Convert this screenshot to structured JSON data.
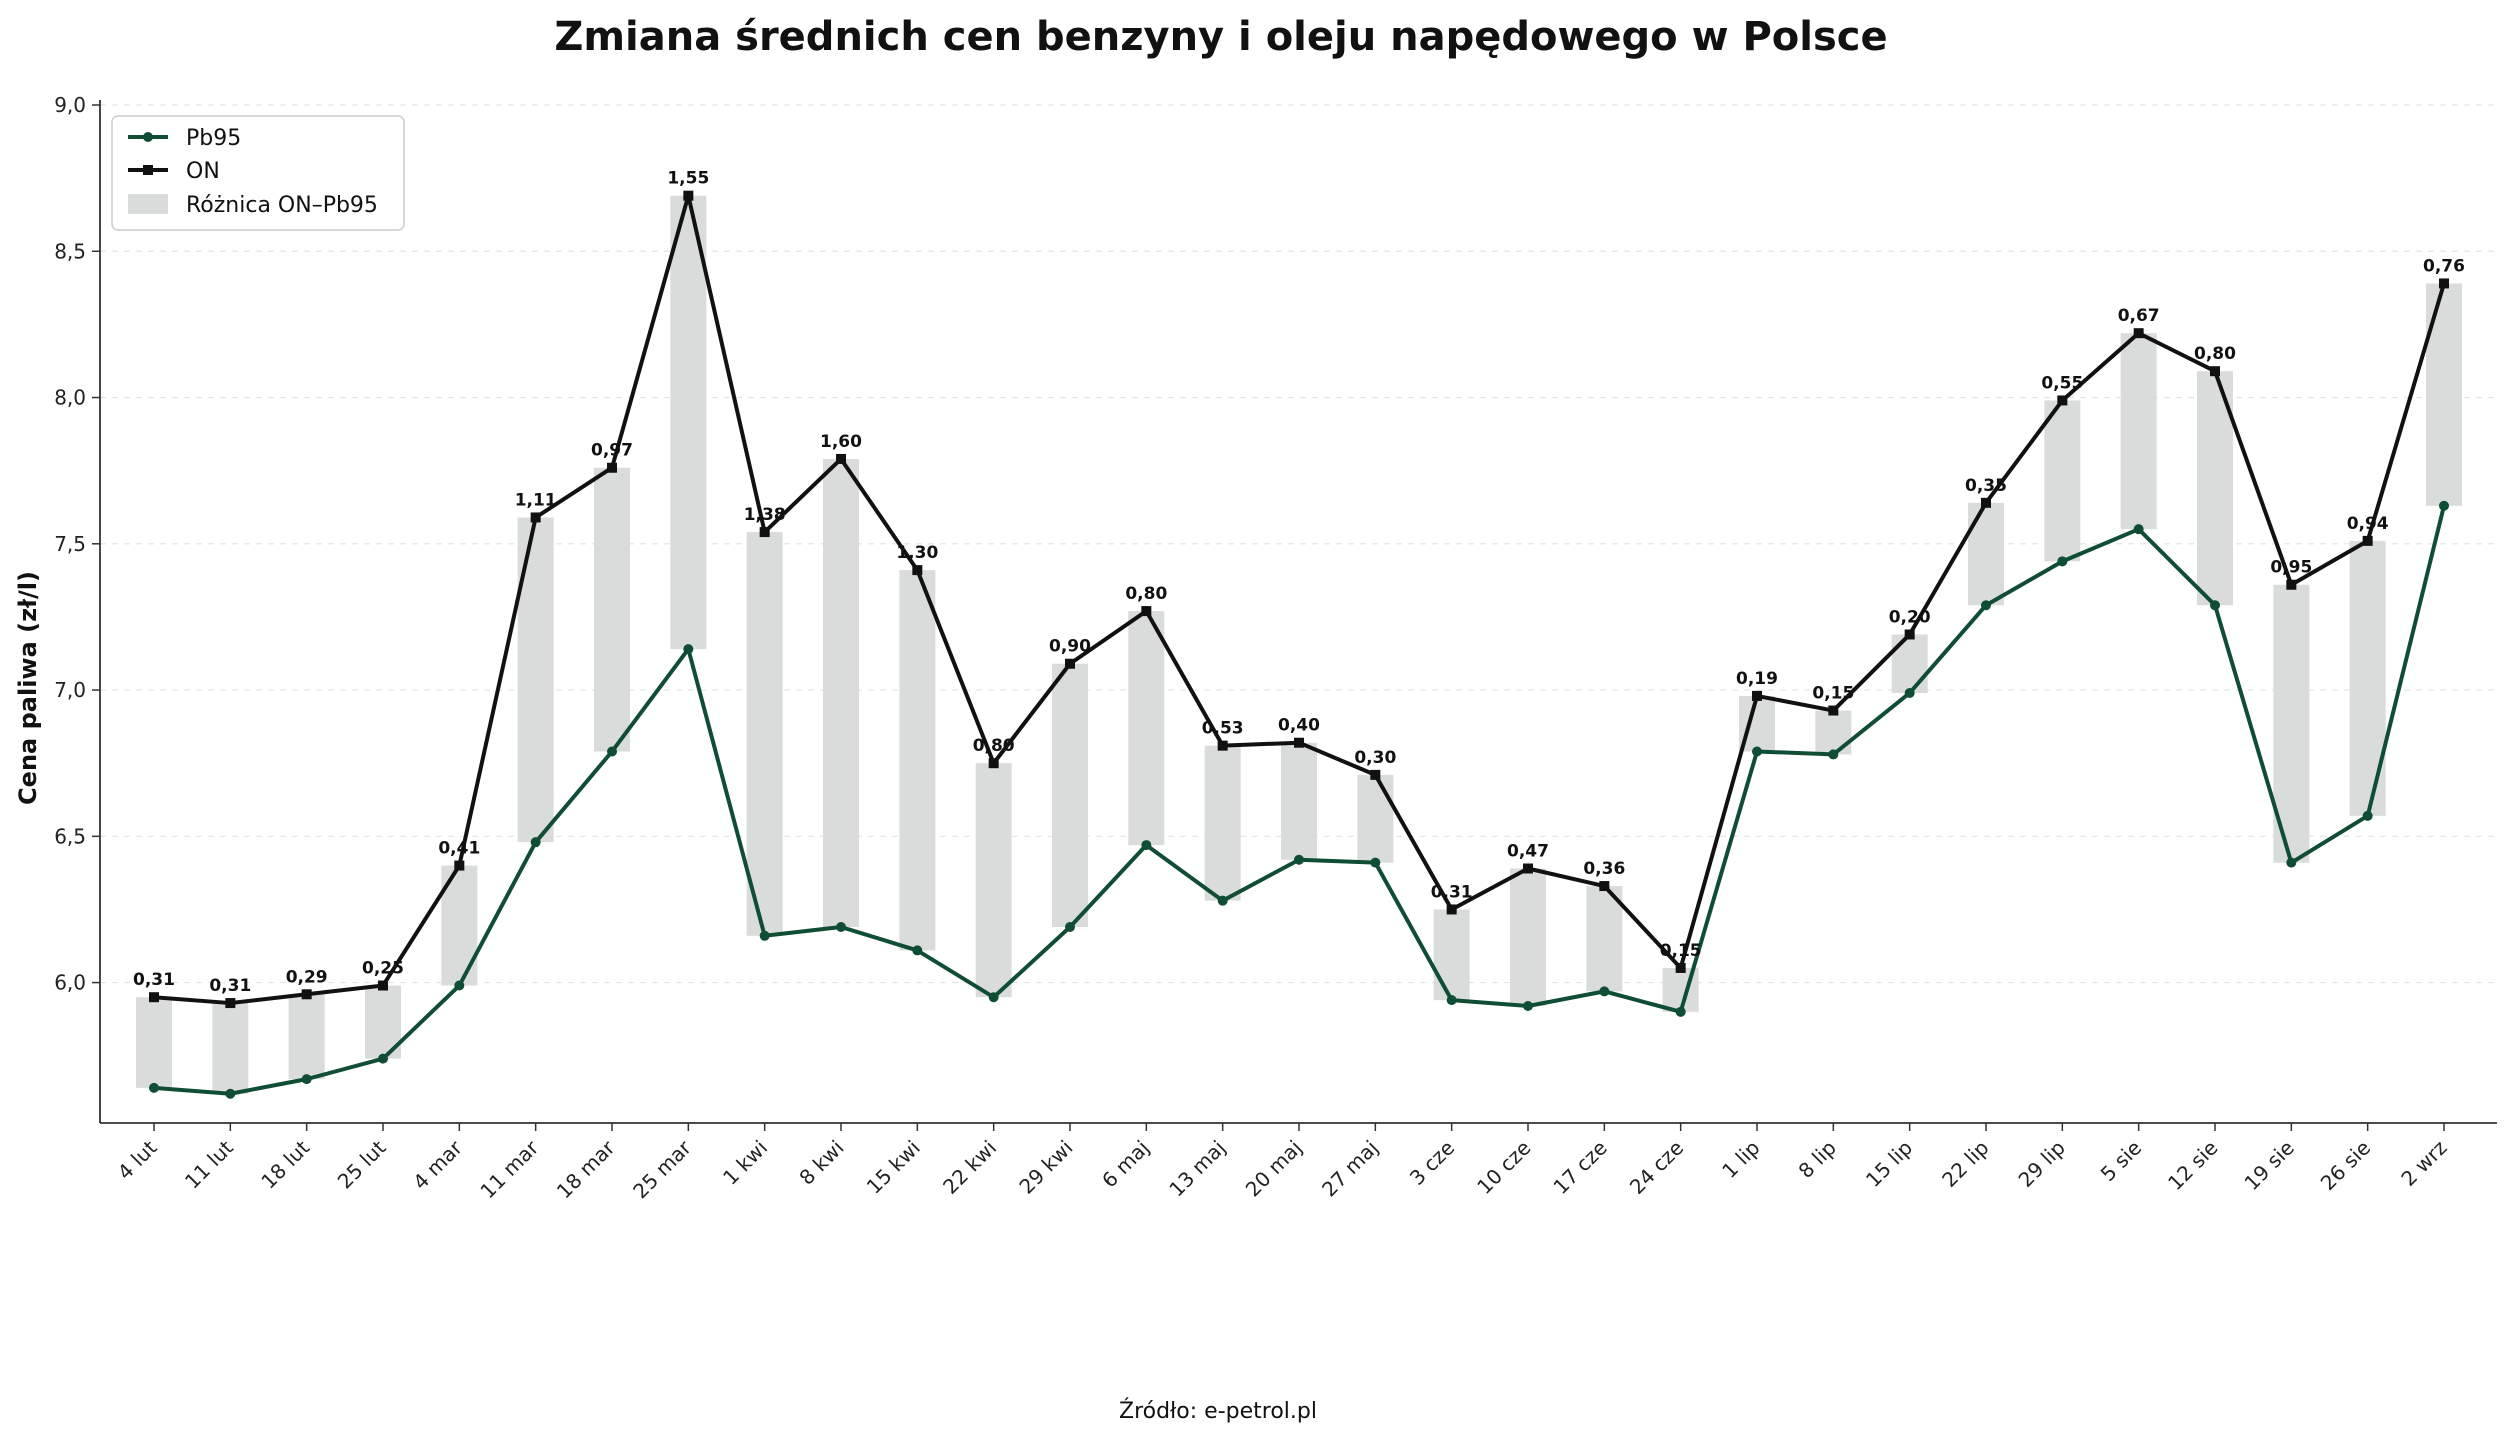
{
  "chart_data": {
    "type": "line",
    "title": "Zmiana średnich cen benzyny i oleju napędowego w Polsce",
    "xlabel": "",
    "ylabel": "Cena paliwa (zł/l)",
    "ylim": [
      5.52,
      9.0
    ],
    "yticks": [
      "6,0",
      "6,5",
      "7,0",
      "7,5",
      "8,0",
      "8,5",
      "9,0"
    ],
    "grid": "y",
    "legend_position": "top-left",
    "categories": [
      "4 lut",
      "11 lut",
      "18 lut",
      "25 lut",
      "4 mar",
      "11 mar",
      "18 mar",
      "25 mar",
      "1 kwi",
      "8 kwi",
      "15 kwi",
      "22 kwi",
      "29 kwi",
      "6 maj",
      "13 maj",
      "20 maj",
      "27 maj",
      "3 cze",
      "10 cze",
      "17 cze",
      "24 cze",
      "1 lip",
      "8 lip",
      "15 lip",
      "22 lip",
      "29 lip",
      "5 sie",
      "12 sie",
      "19 sie",
      "26 sie",
      "2 wrz"
    ],
    "series": [
      {
        "name": "Pb95",
        "color": "#0f4d34",
        "marker": "circle",
        "values": [
          5.64,
          5.62,
          5.67,
          5.74,
          5.99,
          6.48,
          6.79,
          7.14,
          6.16,
          6.19,
          6.11,
          5.95,
          6.19,
          6.47,
          6.28,
          6.42,
          6.41,
          5.94,
          5.92,
          5.97,
          5.9,
          6.79,
          6.78,
          6.99,
          7.29,
          7.44,
          7.55,
          7.29,
          6.41,
          6.57,
          7.63
        ]
      },
      {
        "name": "ON",
        "color": "#111111",
        "marker": "square",
        "values": [
          5.95,
          5.93,
          5.96,
          5.99,
          6.4,
          7.59,
          7.76,
          8.69,
          7.54,
          7.79,
          7.41,
          6.75,
          7.09,
          7.27,
          6.81,
          6.82,
          6.71,
          6.25,
          6.39,
          6.33,
          6.05,
          6.98,
          6.93,
          7.19,
          7.64,
          7.99,
          8.22,
          8.09,
          7.36,
          7.51,
          8.39
        ]
      }
    ],
    "difference": {
      "name": "Różnica ON–Pb95",
      "color": "#d9dcdb",
      "labels": [
        "0,31",
        "0,31",
        "0,29",
        "0,25",
        "0,41",
        "1,11",
        "0,97",
        "1,55",
        "1,38",
        "1,60",
        "1,30",
        "0,80",
        "0,90",
        "0,80",
        "0,53",
        "0,40",
        "0,30",
        "0,31",
        "0,47",
        "0,36",
        "0,15",
        "0,19",
        "0,15",
        "0,20",
        "0,35",
        "0,55",
        "0,67",
        "0,80",
        "0,95",
        "0,94",
        "0,76"
      ]
    },
    "source": "Źródło: e-petrol.pl"
  }
}
